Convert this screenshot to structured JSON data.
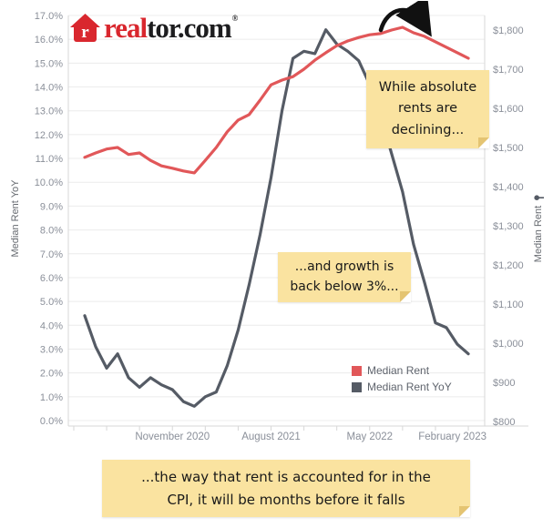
{
  "logo": {
    "brand_red": "real",
    "brand_dark": "tor.com",
    "registered": "®",
    "icon": "realtor-house-icon",
    "icon_color": "#d9272e"
  },
  "axes": {
    "left_title": "Median Rent YoY",
    "right_title": "Median Rent"
  },
  "legend": {
    "items": [
      {
        "label": "Median Rent",
        "color": "#e15759"
      },
      {
        "label": "Median Rent YoY",
        "color": "#555b65"
      }
    ]
  },
  "annotations": {
    "top_note": {
      "line1": "While absolute",
      "line2": "rents are",
      "line3": "declining..."
    },
    "mid_note": {
      "line1": "...and growth is",
      "line2": "back below 3%..."
    },
    "bottom_note": {
      "line1": "...the way that rent is accounted for in the",
      "line2": "CPI, it will be months before it falls"
    }
  },
  "colors": {
    "median_rent_line": "#e15759",
    "median_rent_yoy_line": "#555b65",
    "gridline": "#ececec",
    "pane_border": "#d7d7d7",
    "tick_label": "#8a8f99",
    "note_fill": "#fae3a0",
    "arrow": "#111111"
  },
  "chart_data": {
    "type": "line",
    "title": "",
    "x": [
      "Mar 2020",
      "Apr 2020",
      "May 2020",
      "Jun 2020",
      "Jul 2020",
      "Aug 2020",
      "Sep 2020",
      "Oct 2020",
      "Nov 2020",
      "Dec 2020",
      "Jan 2021",
      "Feb 2021",
      "Mar 2021",
      "Apr 2021",
      "May 2021",
      "Jun 2021",
      "Jul 2021",
      "Aug 2021",
      "Sep 2021",
      "Oct 2021",
      "Nov 2021",
      "Dec 2021",
      "Jan 2022",
      "Feb 2022",
      "Mar 2022",
      "Apr 2022",
      "May 2022",
      "Jun 2022",
      "Jul 2022",
      "Aug 2022",
      "Sep 2022",
      "Oct 2022",
      "Nov 2022",
      "Dec 2022",
      "Jan 2023",
      "Feb 2023"
    ],
    "series": [
      {
        "name": "Median Rent",
        "axis": "right",
        "color": "#e15759",
        "values": [
          1475,
          1486,
          1496,
          1500,
          1482,
          1486,
          1467,
          1453,
          1447,
          1440,
          1435,
          1467,
          1500,
          1540,
          1570,
          1584,
          1621,
          1660,
          1672,
          1681,
          1700,
          1723,
          1742,
          1760,
          1772,
          1781,
          1788,
          1791,
          1800,
          1807,
          1793,
          1784,
          1770,
          1756,
          1742,
          1728
        ]
      },
      {
        "name": "Median Rent YoY",
        "axis": "left",
        "color": "#555b65",
        "values": [
          4.4,
          3.1,
          2.2,
          2.8,
          1.8,
          1.4,
          1.8,
          1.5,
          1.3,
          0.8,
          0.6,
          1.0,
          1.2,
          2.3,
          3.8,
          5.7,
          7.8,
          10.2,
          13.0,
          15.2,
          15.5,
          15.4,
          16.4,
          15.8,
          15.5,
          15.1,
          14.1,
          12.8,
          11.2,
          9.6,
          7.4,
          5.8,
          4.1,
          3.9,
          3.2,
          2.8
        ]
      }
    ],
    "left_axis": {
      "label": "Median Rent YoY",
      "min": 0,
      "max": 17,
      "tick_step_pct": 1,
      "tick_labels": [
        "0.0%",
        "1.0%",
        "2.0%",
        "3.0%",
        "4.0%",
        "5.0%",
        "6.0%",
        "7.0%",
        "8.0%",
        "9.0%",
        "10.0%",
        "11.0%",
        "12.0%",
        "13.0%",
        "14.0%",
        "15.0%",
        "16.0%",
        "17.0%"
      ]
    },
    "right_axis": {
      "label": "Median Rent",
      "min": 800,
      "max": 1800,
      "tick_step_usd": 100,
      "tick_labels": [
        "$800",
        "$900",
        "$1,000",
        "$1,100",
        "$1,200",
        "$1,300",
        "$1,400",
        "$1,500",
        "$1,600",
        "$1,700",
        "$1,800"
      ]
    },
    "x_axis": {
      "major_ticks": [
        {
          "label": "November 2020",
          "month_index": 8
        },
        {
          "label": "August 2021",
          "month_index": 17
        },
        {
          "label": "May 2022",
          "month_index": 26
        },
        {
          "label": "February 2023",
          "month_index": 35
        }
      ],
      "minor_tick_every_months": 3
    },
    "grid": true,
    "legend_position": "inside-bottom-right"
  }
}
